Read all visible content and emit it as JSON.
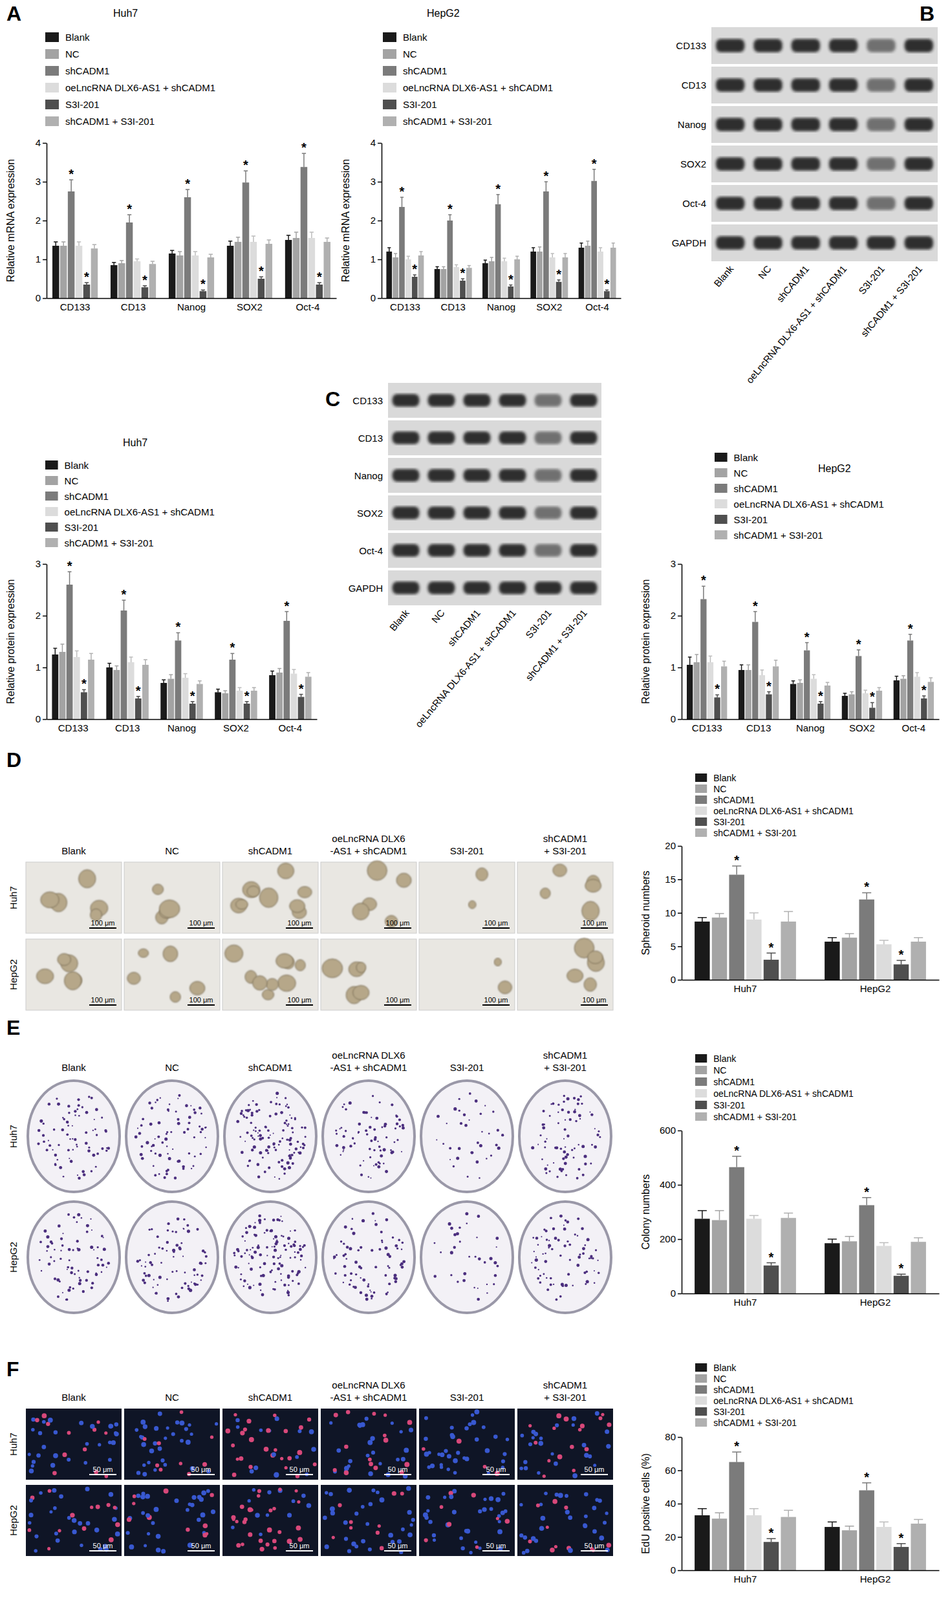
{
  "chart_data": [
    {
      "type": "bar",
      "title": "Huh7",
      "y_label": "Relative mRNA expression",
      "categories": [
        "CD133",
        "CD13",
        "Nanog",
        "SOX2",
        "Oct-4"
      ],
      "ylim": [
        0,
        4
      ],
      "yticks": [
        0,
        1,
        2,
        3,
        4
      ],
      "grid": false,
      "series": [
        {
          "name": "Blank",
          "color": "#1a1a1a",
          "values": [
            1.35,
            0.85,
            1.15,
            1.35,
            1.5
          ],
          "error": [
            0.1,
            0.07,
            0.08,
            0.12,
            0.12
          ]
        },
        {
          "name": "NC",
          "color": "#a3a3a3",
          "values": [
            1.35,
            0.9,
            1.1,
            1.45,
            1.55
          ],
          "error": [
            0.1,
            0.07,
            0.1,
            0.12,
            0.15
          ]
        },
        {
          "name": "shCADM1",
          "color": "#7b7b7b",
          "values": [
            2.75,
            1.95,
            2.6,
            2.98,
            3.38
          ],
          "error": [
            0.3,
            0.2,
            0.2,
            0.3,
            0.35
          ],
          "significance": [
            "*",
            "*",
            "*",
            "*",
            "*"
          ]
        },
        {
          "name": "oeLncRNA DLX6-AS1 + shCADM1",
          "color": "#dcdcdc",
          "values": [
            1.35,
            0.95,
            1.1,
            1.45,
            1.55
          ],
          "error": [
            0.1,
            0.06,
            0.1,
            0.15,
            0.15
          ]
        },
        {
          "name": "S3I-201",
          "color": "#4f4f4f",
          "values": [
            0.35,
            0.28,
            0.18,
            0.5,
            0.35
          ],
          "error": [
            0.05,
            0.04,
            0.03,
            0.05,
            0.05
          ],
          "significance": [
            "*",
            "*",
            "*",
            "*",
            "*"
          ]
        },
        {
          "name": "shCADM1 + S3I-201",
          "color": "#b0b0b0",
          "values": [
            1.28,
            0.88,
            1.05,
            1.4,
            1.45
          ],
          "error": [
            0.1,
            0.07,
            0.08,
            0.1,
            0.1
          ]
        }
      ]
    },
    {
      "type": "bar",
      "title": "HepG2",
      "y_label": "Relative mRNA expression",
      "categories": [
        "CD133",
        "CD13",
        "Nanog",
        "SOX2",
        "Oct-4"
      ],
      "ylim": [
        0,
        4
      ],
      "yticks": [
        0,
        1,
        2,
        3,
        4
      ],
      "grid": false,
      "series": [
        {
          "name": "Blank",
          "color": "#1a1a1a",
          "values": [
            1.2,
            0.75,
            0.9,
            1.2,
            1.3
          ],
          "error": [
            0.1,
            0.06,
            0.08,
            0.1,
            0.12
          ]
        },
        {
          "name": "NC",
          "color": "#a3a3a3",
          "values": [
            1.05,
            0.75,
            0.95,
            1.2,
            1.35
          ],
          "error": [
            0.1,
            0.06,
            0.1,
            0.12,
            0.12
          ]
        },
        {
          "name": "shCADM1",
          "color": "#7b7b7b",
          "values": [
            2.35,
            2.0,
            2.42,
            2.75,
            3.02
          ],
          "error": [
            0.25,
            0.15,
            0.25,
            0.25,
            0.3
          ],
          "significance": [
            "*",
            "*",
            "*",
            "*",
            "*"
          ]
        },
        {
          "name": "oeLncRNA DLX6-AS1 + shCADM1",
          "color": "#dcdcdc",
          "values": [
            1.0,
            0.8,
            0.95,
            1.05,
            1.2
          ],
          "error": [
            0.08,
            0.06,
            0.08,
            0.1,
            0.1
          ]
        },
        {
          "name": "S3I-201",
          "color": "#4f4f4f",
          "values": [
            0.55,
            0.45,
            0.3,
            0.42,
            0.18
          ],
          "error": [
            0.05,
            0.05,
            0.04,
            0.05,
            0.03
          ],
          "significance": [
            "*",
            "*",
            "*",
            "*",
            "*"
          ]
        },
        {
          "name": "shCADM1 + S3I-201",
          "color": "#b0b0b0",
          "values": [
            1.1,
            0.78,
            1.0,
            1.05,
            1.3
          ],
          "error": [
            0.1,
            0.06,
            0.08,
            0.1,
            0.12
          ]
        }
      ]
    },
    {
      "type": "bar",
      "title": "Huh7",
      "y_label": "Relative protein expression",
      "categories": [
        "CD133",
        "CD13",
        "Nanog",
        "SOX2",
        "Oct-4"
      ],
      "ylim": [
        0,
        3
      ],
      "yticks": [
        0,
        1,
        2,
        3
      ],
      "grid": false,
      "series": [
        {
          "name": "Blank",
          "color": "#1a1a1a",
          "values": [
            1.25,
            1.0,
            0.7,
            0.52,
            0.85
          ],
          "error": [
            0.12,
            0.08,
            0.06,
            0.06,
            0.08
          ]
        },
        {
          "name": "NC",
          "color": "#a3a3a3",
          "values": [
            1.3,
            0.95,
            0.78,
            0.5,
            0.9
          ],
          "error": [
            0.15,
            0.08,
            0.08,
            0.05,
            0.08
          ]
        },
        {
          "name": "shCADM1",
          "color": "#7b7b7b",
          "values": [
            2.6,
            2.1,
            1.52,
            1.15,
            1.9
          ],
          "error": [
            0.25,
            0.2,
            0.15,
            0.12,
            0.18
          ],
          "significance": [
            "*",
            "*",
            "*",
            "*",
            "*"
          ]
        },
        {
          "name": "oeLncRNA DLX6-AS1 + shCADM1",
          "color": "#dcdcdc",
          "values": [
            1.2,
            1.1,
            0.8,
            0.55,
            0.88
          ],
          "error": [
            0.12,
            0.1,
            0.08,
            0.06,
            0.08
          ]
        },
        {
          "name": "S3I-201",
          "color": "#4f4f4f",
          "values": [
            0.52,
            0.4,
            0.3,
            0.3,
            0.43
          ],
          "error": [
            0.05,
            0.04,
            0.04,
            0.04,
            0.05
          ],
          "significance": [
            "*",
            "*",
            "*",
            "*",
            "*"
          ]
        },
        {
          "name": "shCADM1 + S3I-201",
          "color": "#b0b0b0",
          "values": [
            1.15,
            1.05,
            0.68,
            0.55,
            0.82
          ],
          "error": [
            0.12,
            0.1,
            0.06,
            0.06,
            0.08
          ]
        }
      ]
    },
    {
      "type": "bar",
      "title": "HepG2",
      "y_label": "Relative protein expression",
      "categories": [
        "CD133",
        "CD13",
        "Nanog",
        "SOX2",
        "Oct-4"
      ],
      "ylim": [
        0,
        3
      ],
      "yticks": [
        0,
        1,
        2,
        3
      ],
      "grid": false,
      "series": [
        {
          "name": "Blank",
          "color": "#1a1a1a",
          "values": [
            1.05,
            0.95,
            0.68,
            0.45,
            0.75
          ],
          "error": [
            0.15,
            0.1,
            0.06,
            0.05,
            0.08
          ]
        },
        {
          "name": "NC",
          "color": "#a3a3a3",
          "values": [
            1.1,
            0.95,
            0.7,
            0.48,
            0.78
          ],
          "error": [
            0.15,
            0.1,
            0.06,
            0.05,
            0.06
          ]
        },
        {
          "name": "shCADM1",
          "color": "#7b7b7b",
          "values": [
            2.32,
            1.88,
            1.33,
            1.22,
            1.52
          ],
          "error": [
            0.25,
            0.2,
            0.15,
            0.12,
            0.12
          ],
          "significance": [
            "*",
            "*",
            "*",
            "*",
            "*"
          ]
        },
        {
          "name": "oeLncRNA DLX6-AS1 + shCADM1",
          "color": "#dcdcdc",
          "values": [
            1.1,
            0.85,
            0.78,
            0.5,
            0.82
          ],
          "error": [
            0.12,
            0.1,
            0.08,
            0.06,
            0.08
          ]
        },
        {
          "name": "S3I-201",
          "color": "#4f4f4f",
          "values": [
            0.42,
            0.48,
            0.3,
            0.22,
            0.4
          ],
          "error": [
            0.05,
            0.05,
            0.04,
            0.1,
            0.05
          ],
          "significance": [
            "*",
            "*",
            "*",
            "*",
            "*"
          ]
        },
        {
          "name": "shCADM1 + S3I-201",
          "color": "#b0b0b0",
          "values": [
            1.02,
            1.02,
            0.65,
            0.55,
            0.72
          ],
          "error": [
            0.1,
            0.12,
            0.06,
            0.06,
            0.08
          ]
        }
      ]
    },
    {
      "type": "bar",
      "y_label": "Spheroid numbers",
      "categories": [
        "Huh7",
        "HepG2"
      ],
      "ylim": [
        0,
        20
      ],
      "yticks": [
        0,
        5,
        10,
        15,
        20
      ],
      "grid": false,
      "series": [
        {
          "name": "Blank",
          "color": "#1a1a1a",
          "values": [
            8.7,
            5.7
          ],
          "error": [
            0.6,
            0.6
          ]
        },
        {
          "name": "NC",
          "color": "#a3a3a3",
          "values": [
            9.3,
            6.3
          ],
          "error": [
            0.6,
            0.6
          ]
        },
        {
          "name": "shCADM1",
          "color": "#7b7b7b",
          "values": [
            15.7,
            12.0
          ],
          "error": [
            1.3,
            1.0
          ],
          "significance": [
            "*",
            "*"
          ]
        },
        {
          "name": "oeLncRNA DLX6-AS1 + shCADM1",
          "color": "#dcdcdc",
          "values": [
            9.0,
            5.3
          ],
          "error": [
            1.0,
            0.6
          ]
        },
        {
          "name": "S3I-201",
          "color": "#4f4f4f",
          "values": [
            3.0,
            2.3
          ],
          "error": [
            1.0,
            0.6
          ],
          "significance": [
            "*",
            "*"
          ]
        },
        {
          "name": "shCADM1 + S3I-201",
          "color": "#b0b0b0",
          "values": [
            8.7,
            5.7
          ],
          "error": [
            1.5,
            0.6
          ]
        }
      ]
    },
    {
      "type": "bar",
      "y_label": "Colony numbers",
      "categories": [
        "Huh7",
        "HepG2"
      ],
      "ylim": [
        0,
        600
      ],
      "yticks": [
        0,
        200,
        400,
        600
      ],
      "grid": false,
      "series": [
        {
          "name": "Blank",
          "color": "#1a1a1a",
          "values": [
            275,
            185
          ],
          "error": [
            30,
            15
          ]
        },
        {
          "name": "NC",
          "color": "#a3a3a3",
          "values": [
            270,
            192
          ],
          "error": [
            35,
            18
          ]
        },
        {
          "name": "shCADM1",
          "color": "#7b7b7b",
          "values": [
            465,
            325
          ],
          "error": [
            40,
            28
          ],
          "significance": [
            "*",
            "*"
          ]
        },
        {
          "name": "oeLncRNA DLX6-AS1 + shCADM1",
          "color": "#dcdcdc",
          "values": [
            275,
            175
          ],
          "error": [
            12,
            12
          ]
        },
        {
          "name": "S3I-201",
          "color": "#4f4f4f",
          "values": [
            103,
            65
          ],
          "error": [
            10,
            6
          ],
          "significance": [
            "*",
            "*"
          ]
        },
        {
          "name": "shCADM1 + S3I-201",
          "color": "#b0b0b0",
          "values": [
            278,
            190
          ],
          "error": [
            18,
            15
          ]
        }
      ]
    },
    {
      "type": "bar",
      "y_label": "EdU positive cells (%)",
      "categories": [
        "Huh7",
        "HepG2"
      ],
      "ylim": [
        0,
        80
      ],
      "yticks": [
        0,
        20,
        40,
        60,
        80
      ],
      "grid": false,
      "series": [
        {
          "name": "Blank",
          "color": "#1a1a1a",
          "values": [
            33,
            26
          ],
          "error": [
            4,
            3
          ]
        },
        {
          "name": "NC",
          "color": "#a3a3a3",
          "values": [
            31,
            24
          ],
          "error": [
            3.5,
            2.5
          ]
        },
        {
          "name": "shCADM1",
          "color": "#7b7b7b",
          "values": [
            65,
            48
          ],
          "error": [
            6,
            4.5
          ],
          "significance": [
            "*",
            "*"
          ]
        },
        {
          "name": "oeLncRNA DLX6-AS1 + shCADM1",
          "color": "#dcdcdc",
          "values": [
            33,
            26
          ],
          "error": [
            4,
            3
          ]
        },
        {
          "name": "S3I-201",
          "color": "#4f4f4f",
          "values": [
            17,
            14
          ],
          "error": [
            2,
            2
          ],
          "significance": [
            "*",
            "*"
          ]
        },
        {
          "name": "shCADM1 + S3I-201",
          "color": "#b0b0b0",
          "values": [
            32,
            28
          ],
          "error": [
            4,
            2.5
          ]
        }
      ]
    }
  ],
  "figure": {
    "panel_labels": [
      "A",
      "B",
      "C",
      "D",
      "E",
      "F"
    ],
    "blots": [
      {
        "rows": [
          "CD133",
          "CD13",
          "Nanog",
          "SOX2",
          "Oct-4",
          "GAPDH"
        ],
        "lanes": [
          "Blank",
          "NC",
          "shCADM1",
          "oeLncRNA DLX6-AS1 + shCADM1",
          "S3I-201",
          "shCADM1 + S3I-201"
        ]
      },
      {
        "rows": [
          "CD133",
          "CD13",
          "Nanog",
          "SOX2",
          "Oct-4",
          "GAPDH"
        ],
        "lanes": [
          "Blank",
          "NC",
          "shCADM1",
          "oeLncRNA DLX6-AS1 + shCADM1",
          "S3I-201",
          "shCADM1 + S3I-201"
        ]
      }
    ],
    "image_panels": [
      {
        "columns": [
          [
            "Blank"
          ],
          [
            "NC"
          ],
          [
            "shCADM1"
          ],
          [
            "oeLncRNA DLX6",
            "-AS1 + shCADM1"
          ],
          [
            "S3I-201"
          ],
          [
            "shCADM1",
            "+ S3I-201"
          ]
        ],
        "rows": [
          "Huh7",
          "HepG2"
        ],
        "scale_bar": "100 μm"
      },
      {
        "columns": [
          [
            "Blank"
          ],
          [
            "NC"
          ],
          [
            "shCADM1"
          ],
          [
            "oeLncRNA DLX6",
            "-AS1 + shCADM1"
          ],
          [
            "S3I-201"
          ],
          [
            "shCADM1",
            "+ S3I-201"
          ]
        ],
        "rows": [
          "Huh7",
          "HepG2"
        ]
      },
      {
        "columns": [
          [
            "Blank"
          ],
          [
            "NC"
          ],
          [
            "shCADM1"
          ],
          [
            "oeLncRNA DLX6",
            "-AS1 + shCADM1"
          ],
          [
            "S3I-201"
          ],
          [
            "shCADM1",
            "+ S3I-201"
          ]
        ],
        "rows": [
          "Huh7",
          "HepG2"
        ],
        "scale_bar": "50 μm"
      }
    ]
  }
}
